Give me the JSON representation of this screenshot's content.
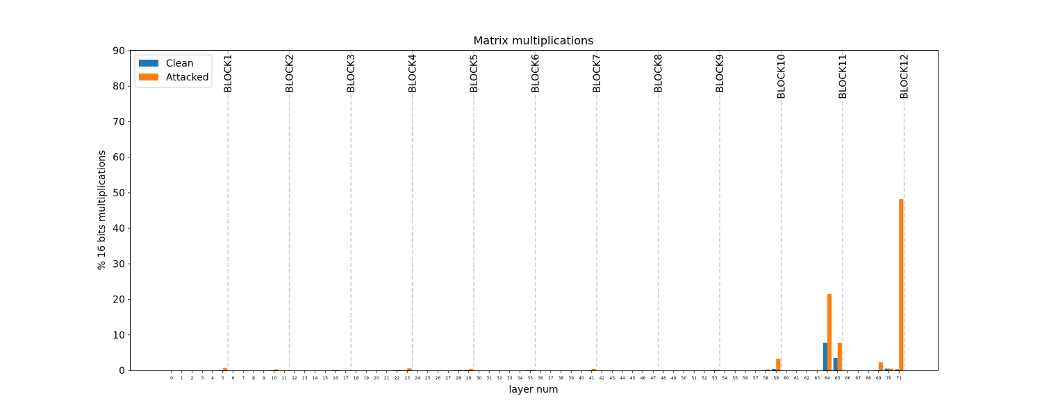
{
  "chart_data": {
    "type": "bar",
    "title": "Matrix multiplications",
    "xlabel": "layer num",
    "ylabel": "% 16 bits multiplications",
    "ylim": [
      0,
      90
    ],
    "yticks": [
      0,
      10,
      20,
      30,
      40,
      50,
      60,
      70,
      80,
      90
    ],
    "categories": [
      "0",
      "1",
      "2",
      "3",
      "4",
      "5",
      "6",
      "7",
      "8",
      "9",
      "10",
      "11",
      "12",
      "13",
      "14",
      "15",
      "16",
      "17",
      "18",
      "19",
      "20",
      "21",
      "22",
      "23",
      "24",
      "25",
      "26",
      "27",
      "28",
      "29",
      "30",
      "31",
      "32",
      "33",
      "34",
      "35",
      "36",
      "37",
      "38",
      "39",
      "40",
      "41",
      "42",
      "43",
      "44",
      "45",
      "46",
      "47",
      "48",
      "49",
      "50",
      "51",
      "52",
      "53",
      "54",
      "55",
      "56",
      "57",
      "58",
      "59",
      "60",
      "61",
      "62",
      "63",
      "64",
      "65",
      "66",
      "67",
      "68",
      "69",
      "70",
      "71"
    ],
    "series": [
      {
        "name": "Clean",
        "color": "#1f77b4",
        "values": [
          0,
          0,
          0,
          0,
          0,
          0.1,
          0,
          0,
          0,
          0,
          0.1,
          0,
          0,
          0,
          0,
          0,
          0.1,
          0,
          0,
          0,
          0,
          0,
          0.1,
          0.1,
          0,
          0,
          0,
          0,
          0.1,
          0.2,
          0,
          0,
          0,
          0,
          0,
          0.1,
          0,
          0,
          0,
          0,
          0,
          0.1,
          0,
          0,
          0,
          0,
          0,
          0,
          0,
          0,
          0,
          0,
          0,
          0.1,
          0,
          0,
          0,
          0,
          0.1,
          0.4,
          0,
          0,
          0,
          0,
          7.8,
          3.5,
          0,
          0,
          0,
          0.1,
          0.5,
          0.3
        ]
      },
      {
        "name": "Attacked",
        "color": "#ff7f0e",
        "values": [
          0,
          0,
          0,
          0,
          0,
          0.7,
          0,
          0,
          0,
          0,
          0.3,
          0,
          0,
          0,
          0,
          0,
          0.2,
          0,
          0,
          0,
          0,
          0,
          0.2,
          0.6,
          0,
          0,
          0,
          0,
          0.2,
          0.4,
          0,
          0,
          0,
          0,
          0,
          0.2,
          0,
          0,
          0,
          0,
          0,
          0.4,
          0,
          0,
          0,
          0,
          0,
          0,
          0,
          0,
          0,
          0,
          0,
          0.2,
          0,
          0,
          0,
          0,
          0.3,
          3.3,
          0,
          0,
          0,
          0,
          21.5,
          7.8,
          0,
          0,
          0,
          2.3,
          0.5,
          48.2
        ]
      }
    ],
    "block_markers": [
      {
        "label": "BLOCK1",
        "after_layer": 5
      },
      {
        "label": "BLOCK2",
        "after_layer": 11
      },
      {
        "label": "BLOCK3",
        "after_layer": 17
      },
      {
        "label": "BLOCK4",
        "after_layer": 23
      },
      {
        "label": "BLOCK5",
        "after_layer": 29
      },
      {
        "label": "BLOCK6",
        "after_layer": 35
      },
      {
        "label": "BLOCK7",
        "after_layer": 41
      },
      {
        "label": "BLOCK8",
        "after_layer": 47
      },
      {
        "label": "BLOCK9",
        "after_layer": 53
      },
      {
        "label": "BLOCK10",
        "after_layer": 59
      },
      {
        "label": "BLOCK11",
        "after_layer": 65
      },
      {
        "label": "BLOCK12",
        "after_layer": 71
      }
    ],
    "legend_position": "top-left",
    "grid": false
  }
}
